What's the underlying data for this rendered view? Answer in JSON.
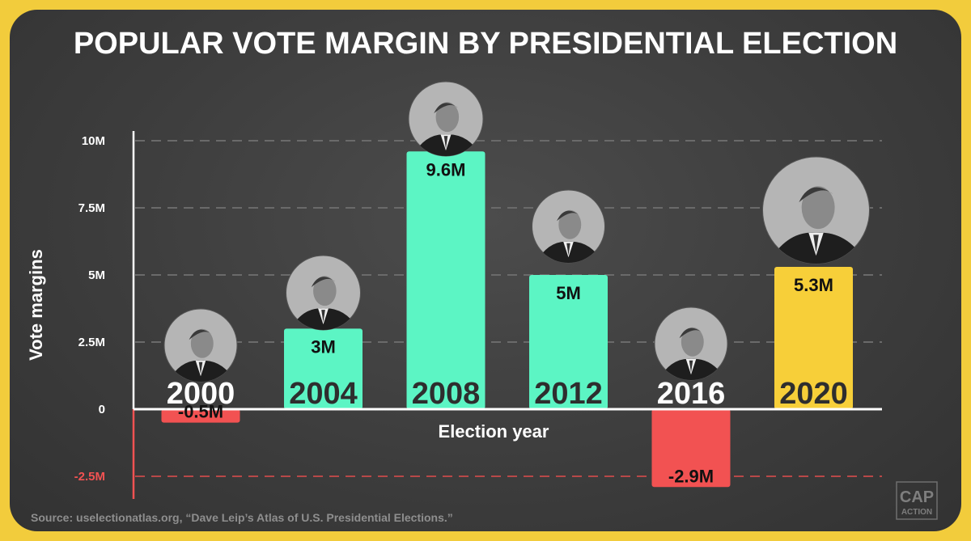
{
  "title": "POPULAR VOTE MARGIN BY PRESIDENTIAL ELECTION",
  "source": "Source: uselectionatlas.org, “Dave Leip’s Atlas of U.S. Presidential Elections.”",
  "logo": {
    "line1": "CAP",
    "line2": "ACTION"
  },
  "colors": {
    "positive": "#5cf5c4",
    "negative": "#f25252",
    "highlight": "#f7cf39",
    "background": "#3f3f3f",
    "frame": "#f2cc3c"
  },
  "chart_data": {
    "type": "bar",
    "title": "POPULAR VOTE MARGIN BY PRESIDENTIAL ELECTION",
    "xlabel": "Election year",
    "ylabel": "Vote margins",
    "categories": [
      "2000",
      "2004",
      "2008",
      "2012",
      "2016",
      "2020"
    ],
    "values": [
      -0.5,
      3,
      9.6,
      5,
      -2.9,
      5.3
    ],
    "value_labels": [
      "-0.5M",
      "3M",
      "9.6M",
      "5M",
      "-2.9M",
      "5.3M"
    ],
    "bar_colors": [
      "#f25252",
      "#5cf5c4",
      "#5cf5c4",
      "#5cf5c4",
      "#f25252",
      "#f7cf39"
    ],
    "yticks": [
      -2.5,
      0,
      2.5,
      5,
      7.5,
      10
    ],
    "ytick_labels": [
      "-2.5M",
      "0",
      "2.5M",
      "5M",
      "7.5M",
      "10M"
    ],
    "ylim": [
      -3.3,
      10
    ],
    "grid": true,
    "portraits": [
      "person-2000",
      "person-2004",
      "person-2008",
      "person-2012",
      "person-2016",
      "person-2020"
    ]
  }
}
